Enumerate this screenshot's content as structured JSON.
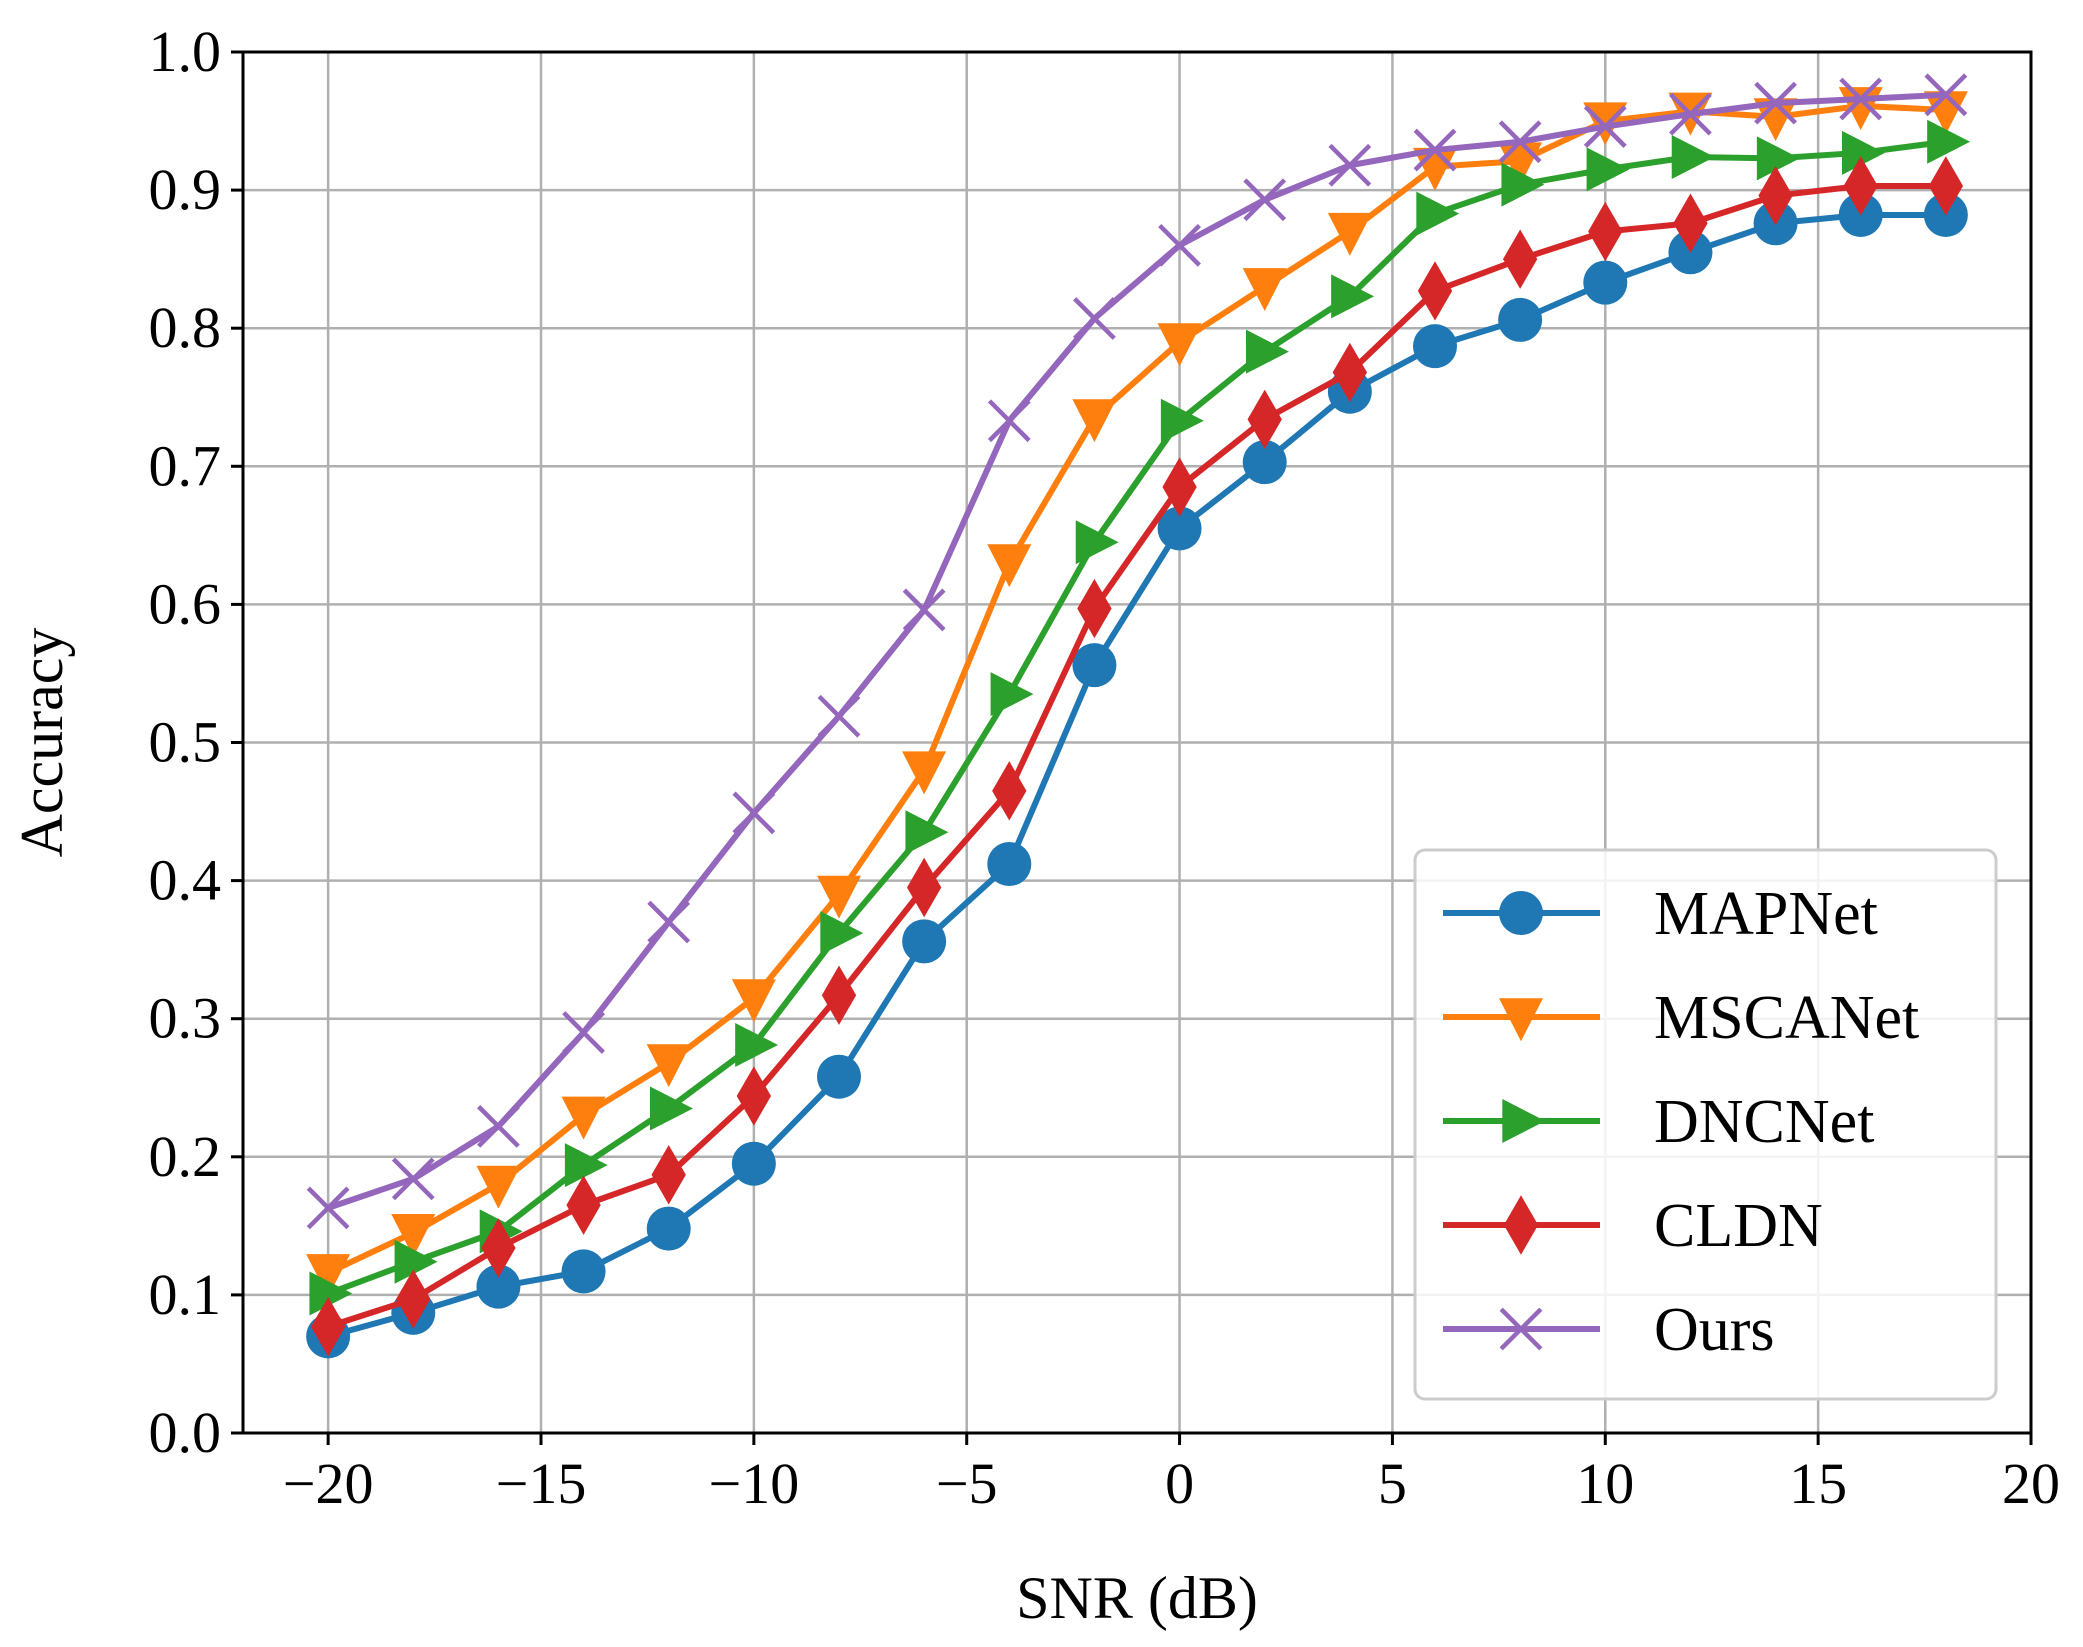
{
  "chart_data": {
    "type": "line",
    "title": "",
    "xlabel": "SNR (dB)",
    "ylabel": "Accuracy",
    "xlim": [
      -22,
      20
    ],
    "ylim": [
      0.0,
      1.0
    ],
    "x_ticks": [
      -20,
      -15,
      -10,
      -5,
      0,
      5,
      10,
      15,
      20
    ],
    "x_tick_labels": [
      "−20",
      "−15",
      "−10",
      "−5",
      "0",
      "5",
      "10",
      "15",
      "20"
    ],
    "y_ticks": [
      0.0,
      0.1,
      0.2,
      0.3,
      0.4,
      0.5,
      0.6,
      0.7,
      0.8,
      0.9,
      1.0
    ],
    "y_tick_labels": [
      "0.0",
      "0.1",
      "0.2",
      "0.3",
      "0.4",
      "0.5",
      "0.6",
      "0.7",
      "0.8",
      "0.9",
      "1.0"
    ],
    "grid": true,
    "legend_position": "lower-right",
    "x": [
      -20,
      -18,
      -16,
      -14,
      -12,
      -10,
      -8,
      -6,
      -4,
      -2,
      0,
      2,
      4,
      6,
      8,
      10,
      12,
      14,
      16,
      18
    ],
    "series": [
      {
        "name": "MAPNet",
        "color": "#1f77b4",
        "marker": "circle",
        "values": [
          0.07,
          0.087,
          0.106,
          0.117,
          0.148,
          0.195,
          0.258,
          0.356,
          0.412,
          0.556,
          0.655,
          0.703,
          0.754,
          0.787,
          0.806,
          0.833,
          0.855,
          0.876,
          0.882,
          0.882
        ]
      },
      {
        "name": "MSCANet",
        "color": "#ff7f0e",
        "marker": "triangle-down",
        "values": [
          0.116,
          0.145,
          0.18,
          0.23,
          0.268,
          0.315,
          0.39,
          0.48,
          0.63,
          0.735,
          0.79,
          0.83,
          0.87,
          0.917,
          0.921,
          0.95,
          0.957,
          0.953,
          0.961,
          0.958
        ]
      },
      {
        "name": "DNCNet",
        "color": "#2ca02c",
        "marker": "triangle-right",
        "values": [
          0.101,
          0.124,
          0.146,
          0.194,
          0.235,
          0.281,
          0.362,
          0.435,
          0.535,
          0.645,
          0.733,
          0.783,
          0.823,
          0.883,
          0.904,
          0.915,
          0.924,
          0.923,
          0.927,
          0.935
        ]
      },
      {
        "name": "CLDN",
        "color": "#d62728",
        "marker": "diamond",
        "values": [
          0.077,
          0.097,
          0.134,
          0.165,
          0.187,
          0.244,
          0.317,
          0.395,
          0.465,
          0.597,
          0.685,
          0.734,
          0.768,
          0.827,
          0.85,
          0.87,
          0.876,
          0.896,
          0.903,
          0.903
        ]
      },
      {
        "name": "Ours",
        "color": "#9467bd",
        "marker": "x",
        "values": [
          0.163,
          0.184,
          0.222,
          0.29,
          0.37,
          0.449,
          0.519,
          0.596,
          0.733,
          0.807,
          0.86,
          0.893,
          0.918,
          0.929,
          0.935,
          0.946,
          0.955,
          0.963,
          0.966,
          0.969
        ]
      }
    ]
  }
}
